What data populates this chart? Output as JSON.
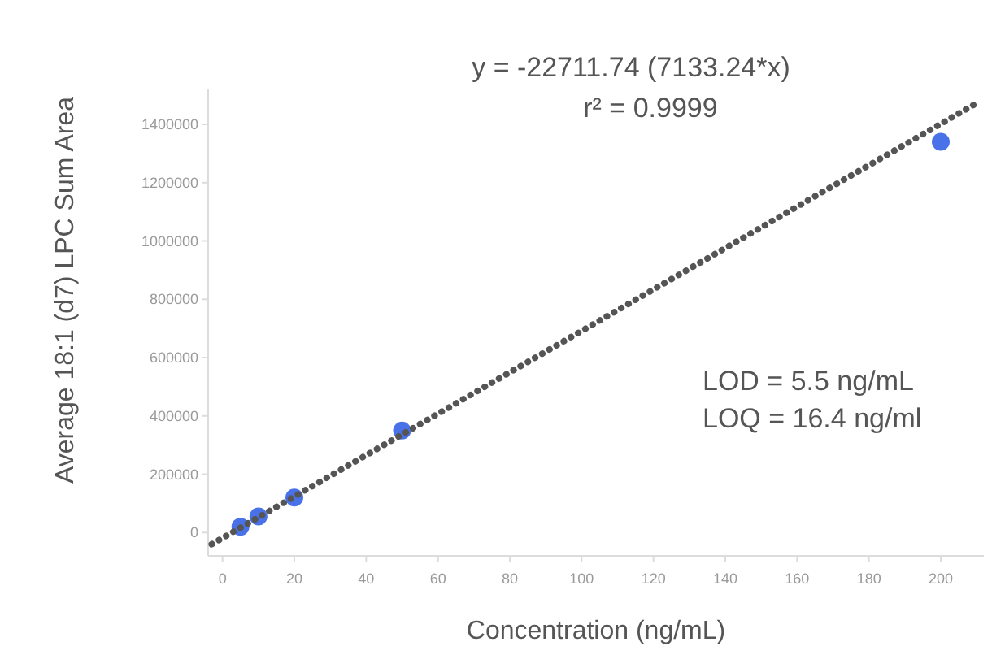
{
  "chart_data": {
    "type": "scatter",
    "title": "y = -22711.74 (7133.24*x)",
    "subtitle": "r² = 0.9999",
    "xlabel": "Concentration (ng/mL)",
    "ylabel": "Average 18:1 (d7) LPC Sum Area",
    "annotations": [
      "LOD = 5.5 ng/mL",
      "LOQ = 16.4 ng/ml"
    ],
    "series": [
      {
        "color": "#4a72e8",
        "x": [
          5,
          10,
          20,
          50,
          200
        ],
        "values": [
          20000,
          55000,
          120000,
          350000,
          1340000
        ],
        "marker": "circle"
      },
      {
        "type": "line",
        "color": "#555555",
        "x": [
          -3,
          211
        ],
        "values": [
          -40000,
          1480000
        ],
        "line_style": "dotted"
      }
    ],
    "xlim": [
      -4,
      212
    ],
    "xticks": [
      0,
      20,
      40,
      60,
      80,
      100,
      120,
      140,
      160,
      180,
      200
    ],
    "ylim": [
      -80000,
      1520000
    ],
    "yticks": [
      0,
      200000,
      400000,
      600000,
      800000,
      1000000,
      1200000,
      1400000
    ],
    "grid": false
  }
}
